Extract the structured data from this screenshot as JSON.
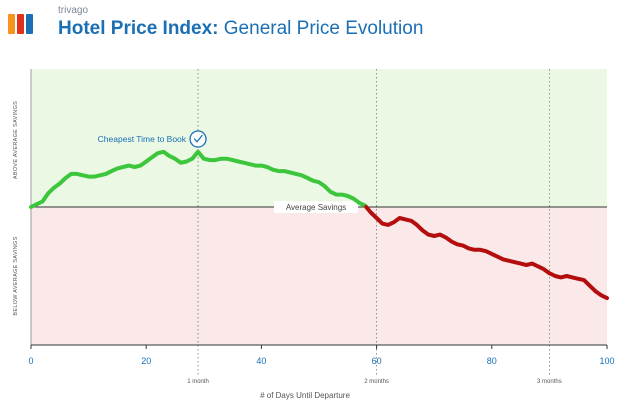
{
  "header": {
    "brand": "trivago",
    "title_bold": "Hotel Price Index:",
    "title_rest": "General Price Evolution",
    "logo_colors": [
      "#f7941d",
      "#e0301e",
      "#1a6fb5"
    ]
  },
  "chart_data": {
    "type": "line",
    "title": "Hotel Price Index: General Price Evolution",
    "xlabel": "# of Days Until Departure",
    "ylabel_above": "ABOVE AVERAGE SAVINGS",
    "ylabel_below": "BELOW AVERAGE SAVINGS",
    "xlim": [
      0,
      100
    ],
    "ylim": [
      -100,
      100
    ],
    "x_ticks": [
      0,
      20,
      40,
      60,
      80,
      100
    ],
    "secondary_ticks": [
      {
        "x": 29,
        "label": "1 month"
      },
      {
        "x": 60,
        "label": "2 months"
      },
      {
        "x": 90,
        "label": "3 months"
      }
    ],
    "baseline_label": "Average Savings",
    "annotation": {
      "x": 29,
      "label": "Cheapest Time to Book",
      "icon": "check-circle-icon"
    },
    "colors": {
      "above_band": "#eaf8e4",
      "below_band": "#fbe8e8",
      "above_line": "#3cc63c",
      "below_line": "#b40d0d",
      "annotation": "#1a6fb5"
    },
    "series": [
      {
        "x": [
          0,
          1,
          2,
          3,
          4,
          5,
          6,
          7,
          8,
          9,
          10,
          11,
          12,
          13,
          14,
          15,
          16,
          17,
          18,
          19,
          20,
          21,
          22,
          23,
          24,
          25,
          26,
          27,
          28,
          29,
          30,
          31,
          32,
          33,
          34,
          35,
          36,
          37,
          38,
          39,
          40,
          41,
          42,
          43,
          44,
          45,
          46,
          47,
          48,
          49,
          50,
          51,
          52,
          53,
          54,
          55,
          56,
          57,
          58,
          59,
          60,
          61,
          62,
          63,
          64,
          65,
          66,
          67,
          68,
          69,
          70,
          71,
          72,
          73,
          74,
          75,
          76,
          77,
          78,
          79,
          80,
          81,
          82,
          83,
          84,
          85,
          86,
          87,
          88,
          89,
          90,
          91,
          92,
          93,
          94,
          95,
          96,
          97,
          98,
          99,
          100
        ],
        "values": [
          0,
          2,
          4,
          10,
          14,
          17,
          21,
          24,
          24,
          23,
          22,
          22,
          23,
          24,
          26,
          28,
          29,
          30,
          29,
          30,
          33,
          36,
          39,
          40,
          37,
          35,
          32,
          33,
          35,
          40,
          35,
          34,
          34,
          35,
          35,
          34,
          33,
          32,
          31,
          30,
          30,
          29,
          27,
          26,
          26,
          25,
          24,
          23,
          21,
          19,
          18,
          15,
          11,
          9,
          9,
          8,
          6,
          3,
          1,
          -4,
          -8,
          -12,
          -13,
          -11,
          -8,
          -9,
          -10,
          -13,
          -17,
          -20,
          -21,
          -20,
          -22,
          -25,
          -27,
          -28,
          -30,
          -31,
          -31,
          -32,
          -34,
          -36,
          -38,
          -39,
          -40,
          -41,
          -42,
          -41,
          -43,
          -45,
          -48,
          -50,
          -51,
          -50,
          -51,
          -52,
          -53,
          -57,
          -61,
          -64,
          -66
        ]
      }
    ]
  }
}
